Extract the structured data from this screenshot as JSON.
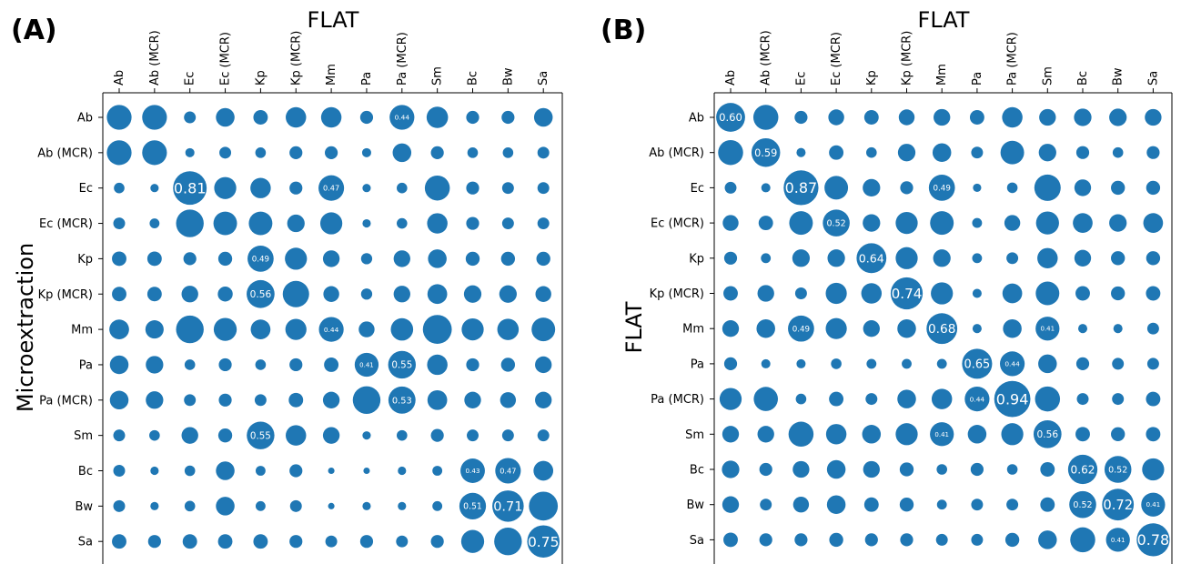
{
  "colors": {
    "bubble": "#1f77b4",
    "axis": "#000000",
    "value_text": "#ffffff"
  },
  "chart_data": [
    {
      "type": "scatter",
      "panel_label": "(A)",
      "top_title": "FLAT",
      "ylabel": "Microextraction",
      "x_categories": [
        "Ab",
        "Ab (MCR)",
        "Ec",
        "Ec (MCR)",
        "Kp",
        "Kp (MCR)",
        "Mm",
        "Pa",
        "Pa (MCR)",
        "Sm",
        "Bc",
        "Bw",
        "Sa"
      ],
      "y_categories": [
        "Ab",
        "Ab (MCR)",
        "Ec",
        "Ec (MCR)",
        "Kp",
        "Kp (MCR)",
        "Mm",
        "Pa",
        "Pa (MCR)",
        "Sm",
        "Bc",
        "Bw",
        "Sa"
      ],
      "matrix": [
        [
          0.44,
          0.44,
          0.1,
          0.25,
          0.15,
          0.3,
          0.3,
          0.12,
          0.44,
          0.33,
          0.12,
          0.12,
          0.25
        ],
        [
          0.44,
          0.44,
          0.06,
          0.1,
          0.08,
          0.12,
          0.12,
          0.06,
          0.25,
          0.12,
          0.08,
          0.08,
          0.1
        ],
        [
          0.08,
          0.05,
          0.81,
          0.35,
          0.3,
          0.12,
          0.47,
          0.05,
          0.08,
          0.45,
          0.12,
          0.1,
          0.1
        ],
        [
          0.1,
          0.07,
          0.55,
          0.4,
          0.4,
          0.22,
          0.35,
          0.05,
          0.08,
          0.3,
          0.12,
          0.1,
          0.1
        ],
        [
          0.15,
          0.15,
          0.12,
          0.14,
          0.49,
          0.35,
          0.2,
          0.09,
          0.2,
          0.25,
          0.14,
          0.14,
          0.14
        ],
        [
          0.15,
          0.15,
          0.2,
          0.16,
          0.56,
          0.5,
          0.18,
          0.09,
          0.2,
          0.28,
          0.22,
          0.22,
          0.18
        ],
        [
          0.28,
          0.24,
          0.55,
          0.38,
          0.28,
          0.32,
          0.44,
          0.18,
          0.36,
          0.6,
          0.35,
          0.33,
          0.4
        ],
        [
          0.25,
          0.22,
          0.08,
          0.12,
          0.08,
          0.12,
          0.15,
          0.41,
          0.55,
          0.3,
          0.12,
          0.14,
          0.2
        ],
        [
          0.25,
          0.22,
          0.1,
          0.12,
          0.1,
          0.15,
          0.2,
          0.55,
          0.53,
          0.28,
          0.2,
          0.18,
          0.2
        ],
        [
          0.1,
          0.08,
          0.2,
          0.14,
          0.55,
          0.3,
          0.2,
          0.05,
          0.08,
          0.12,
          0.1,
          0.1,
          0.1
        ],
        [
          0.1,
          0.05,
          0.08,
          0.25,
          0.07,
          0.12,
          0.03,
          0.03,
          0.05,
          0.07,
          0.43,
          0.47,
          0.28
        ],
        [
          0.1,
          0.05,
          0.08,
          0.25,
          0.07,
          0.1,
          0.03,
          0.05,
          0.05,
          0.07,
          0.51,
          0.71,
          0.6
        ],
        [
          0.15,
          0.12,
          0.15,
          0.15,
          0.15,
          0.12,
          0.1,
          0.12,
          0.1,
          0.12,
          0.38,
          0.55,
          0.75
        ]
      ],
      "labels": [
        {
          "row": 0,
          "col": 8,
          "text": "0.44"
        },
        {
          "row": 2,
          "col": 2,
          "text": "0.81"
        },
        {
          "row": 2,
          "col": 6,
          "text": "0.47"
        },
        {
          "row": 4,
          "col": 4,
          "text": "0.49"
        },
        {
          "row": 5,
          "col": 4,
          "text": "0.56"
        },
        {
          "row": 6,
          "col": 6,
          "text": "0.44"
        },
        {
          "row": 7,
          "col": 7,
          "text": "0.41"
        },
        {
          "row": 7,
          "col": 8,
          "text": "0.55"
        },
        {
          "row": 8,
          "col": 8,
          "text": "0.53"
        },
        {
          "row": 9,
          "col": 4,
          "text": "0.55"
        },
        {
          "row": 10,
          "col": 10,
          "text": "0.43"
        },
        {
          "row": 10,
          "col": 11,
          "text": "0.47"
        },
        {
          "row": 11,
          "col": 10,
          "text": "0.51"
        },
        {
          "row": 11,
          "col": 11,
          "text": "0.71"
        },
        {
          "row": 12,
          "col": 12,
          "text": "0.75"
        }
      ]
    },
    {
      "type": "scatter",
      "panel_label": "(B)",
      "top_title": "FLAT",
      "ylabel": "FLAT",
      "x_categories": [
        "Ab",
        "Ab (MCR)",
        "Ec",
        "Ec (MCR)",
        "Kp",
        "Kp (MCR)",
        "Mm",
        "Pa",
        "Pa (MCR)",
        "Sm",
        "Bc",
        "Bw",
        "Sa"
      ],
      "y_categories": [
        "Ab",
        "Ab (MCR)",
        "Ec",
        "Ec (MCR)",
        "Kp",
        "Kp (MCR)",
        "Mm",
        "Pa",
        "Pa (MCR)",
        "Sm",
        "Bc",
        "Bw",
        "Sa"
      ],
      "matrix": [
        [
          0.6,
          0.45,
          0.12,
          0.18,
          0.15,
          0.18,
          0.2,
          0.15,
          0.3,
          0.2,
          0.22,
          0.22,
          0.2
        ],
        [
          0.45,
          0.59,
          0.06,
          0.15,
          0.08,
          0.22,
          0.25,
          0.1,
          0.4,
          0.22,
          0.12,
          0.08,
          0.12
        ],
        [
          0.1,
          0.06,
          0.87,
          0.4,
          0.22,
          0.12,
          0.49,
          0.05,
          0.08,
          0.5,
          0.2,
          0.14,
          0.14
        ],
        [
          0.18,
          0.15,
          0.4,
          0.52,
          0.22,
          0.35,
          0.4,
          0.07,
          0.18,
          0.38,
          0.28,
          0.22,
          0.28
        ],
        [
          0.12,
          0.07,
          0.22,
          0.22,
          0.64,
          0.35,
          0.22,
          0.07,
          0.1,
          0.3,
          0.2,
          0.14,
          0.14
        ],
        [
          0.15,
          0.2,
          0.1,
          0.32,
          0.3,
          0.74,
          0.35,
          0.06,
          0.28,
          0.4,
          0.15,
          0.14,
          0.15
        ],
        [
          0.2,
          0.25,
          0.49,
          0.32,
          0.2,
          0.25,
          0.68,
          0.06,
          0.25,
          0.41,
          0.06,
          0.06,
          0.1
        ],
        [
          0.12,
          0.06,
          0.06,
          0.08,
          0.07,
          0.07,
          0.07,
          0.65,
          0.44,
          0.25,
          0.12,
          0.1,
          0.1
        ],
        [
          0.35,
          0.42,
          0.08,
          0.15,
          0.1,
          0.25,
          0.3,
          0.44,
          0.94,
          0.45,
          0.1,
          0.1,
          0.15
        ],
        [
          0.2,
          0.2,
          0.45,
          0.3,
          0.25,
          0.35,
          0.41,
          0.25,
          0.35,
          0.56,
          0.15,
          0.14,
          0.15
        ],
        [
          0.22,
          0.12,
          0.2,
          0.25,
          0.2,
          0.14,
          0.08,
          0.12,
          0.08,
          0.15,
          0.62,
          0.52,
          0.35
        ],
        [
          0.2,
          0.1,
          0.18,
          0.25,
          0.15,
          0.14,
          0.07,
          0.1,
          0.1,
          0.15,
          0.52,
          0.72,
          0.41
        ],
        [
          0.15,
          0.12,
          0.12,
          0.14,
          0.12,
          0.12,
          0.1,
          0.1,
          0.14,
          0.25,
          0.45,
          0.41,
          0.78
        ]
      ],
      "labels": [
        {
          "row": 0,
          "col": 0,
          "text": "0.60"
        },
        {
          "row": 1,
          "col": 1,
          "text": "0.59"
        },
        {
          "row": 2,
          "col": 2,
          "text": "0.87"
        },
        {
          "row": 2,
          "col": 6,
          "text": "0.49"
        },
        {
          "row": 3,
          "col": 3,
          "text": "0.52"
        },
        {
          "row": 4,
          "col": 4,
          "text": "0.64"
        },
        {
          "row": 5,
          "col": 5,
          "text": "0.74"
        },
        {
          "row": 6,
          "col": 2,
          "text": "0.49"
        },
        {
          "row": 6,
          "col": 6,
          "text": "0.68"
        },
        {
          "row": 6,
          "col": 9,
          "text": "0.41"
        },
        {
          "row": 7,
          "col": 7,
          "text": "0.65"
        },
        {
          "row": 7,
          "col": 8,
          "text": "0.44"
        },
        {
          "row": 8,
          "col": 7,
          "text": "0.44"
        },
        {
          "row": 8,
          "col": 8,
          "text": "0.94"
        },
        {
          "row": 9,
          "col": 6,
          "text": "0.41"
        },
        {
          "row": 9,
          "col": 9,
          "text": "0.56"
        },
        {
          "row": 10,
          "col": 10,
          "text": "0.62"
        },
        {
          "row": 10,
          "col": 11,
          "text": "0.52"
        },
        {
          "row": 11,
          "col": 10,
          "text": "0.52"
        },
        {
          "row": 11,
          "col": 11,
          "text": "0.72"
        },
        {
          "row": 11,
          "col": 12,
          "text": "0.41"
        },
        {
          "row": 12,
          "col": 11,
          "text": "0.41"
        },
        {
          "row": 12,
          "col": 12,
          "text": "0.78"
        }
      ]
    }
  ]
}
